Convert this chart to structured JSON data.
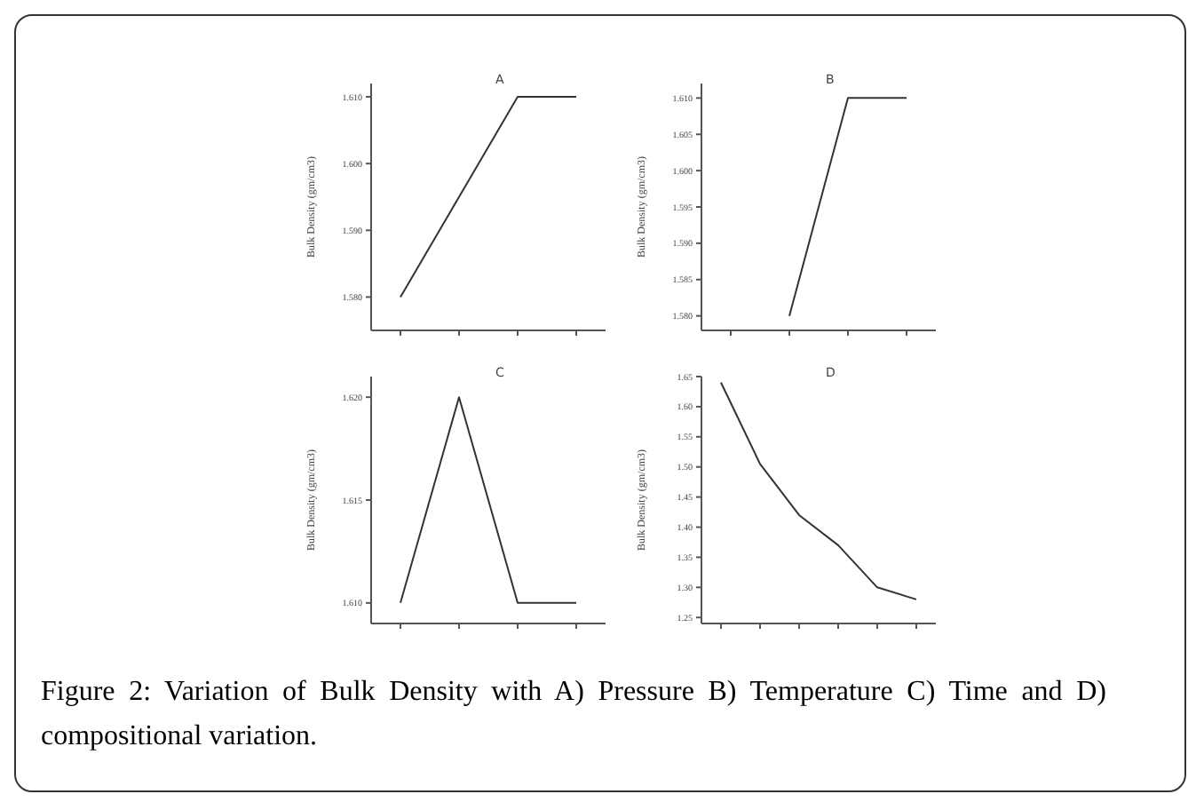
{
  "chart_data": [
    {
      "type": "line",
      "title": "A",
      "ylabel": "Bulk Density (gm/cm3)",
      "categories": [
        null,
        null,
        null,
        null
      ],
      "values": [
        1.58,
        1.595,
        1.61,
        1.61
      ],
      "color": "#333333",
      "ylim": [
        1.575,
        1.612
      ],
      "yticks": [
        {
          "value": 1.58,
          "label": "1.580"
        },
        {
          "value": 1.59,
          "label": "1.590"
        },
        {
          "value": 1.6,
          "label": "1.600"
        },
        {
          "value": 1.61,
          "label": "1.610"
        }
      ],
      "tick_labels": "y",
      "grid": false,
      "legend": false,
      "annotations": [
        "Figure 2: Variation of Bulk Density with A) Pressure B) Temperature C) Time and D) compositional variation."
      ]
    },
    {
      "type": "line",
      "title": "B",
      "ylabel": "Bulk Density (gm/cm3)",
      "categories": [
        null,
        null,
        null,
        null
      ],
      "values": [
        null,
        1.58,
        1.61,
        1.61
      ],
      "color": "#333333",
      "ylim": [
        1.578,
        1.612
      ],
      "yticks": [
        {
          "value": 1.58,
          "label": "1.580"
        },
        {
          "value": 1.585,
          "label": "1.585"
        },
        {
          "value": 1.59,
          "label": "1.590"
        },
        {
          "value": 1.595,
          "label": "1.595"
        },
        {
          "value": 1.6,
          "label": "1.600"
        },
        {
          "value": 1.605,
          "label": "1.605"
        },
        {
          "value": 1.61,
          "label": "1.610"
        }
      ],
      "tick_labels": "y",
      "grid": false,
      "legend": false
    },
    {
      "type": "line",
      "title": "C",
      "ylabel": "Bulk Density (gm/cm3)",
      "categories": [
        null,
        null,
        null,
        null
      ],
      "values": [
        1.61,
        1.62,
        1.61,
        1.61
      ],
      "color": "#333333",
      "ylim": [
        1.609,
        1.621
      ],
      "yticks": [
        {
          "value": 1.61,
          "label": "1.610"
        },
        {
          "value": 1.615,
          "label": "1.615"
        },
        {
          "value": 1.62,
          "label": "1.620"
        }
      ],
      "tick_labels": "y",
      "grid": false,
      "legend": false
    },
    {
      "type": "line",
      "title": "D",
      "ylabel": "Bulk Density (gm/cm3)",
      "categories": [
        null,
        null,
        null,
        null,
        null,
        null
      ],
      "values": [
        1.64,
        1.505,
        1.42,
        1.37,
        1.3,
        1.28
      ],
      "color": "#333333",
      "ylim": [
        1.24,
        1.65
      ],
      "yticks": [
        {
          "value": 1.25,
          "label": "1.25"
        },
        {
          "value": 1.3,
          "label": "1.30"
        },
        {
          "value": 1.35,
          "label": "1.35"
        },
        {
          "value": 1.4,
          "label": "1.40"
        },
        {
          "value": 1.45,
          "label": "1.45"
        },
        {
          "value": 1.5,
          "label": "1.50"
        },
        {
          "value": 1.55,
          "label": "1.55"
        },
        {
          "value": 1.6,
          "label": "1.60"
        },
        {
          "value": 1.65,
          "label": "1.65"
        }
      ],
      "tick_labels": "y",
      "grid": false,
      "legend": false
    }
  ]
}
